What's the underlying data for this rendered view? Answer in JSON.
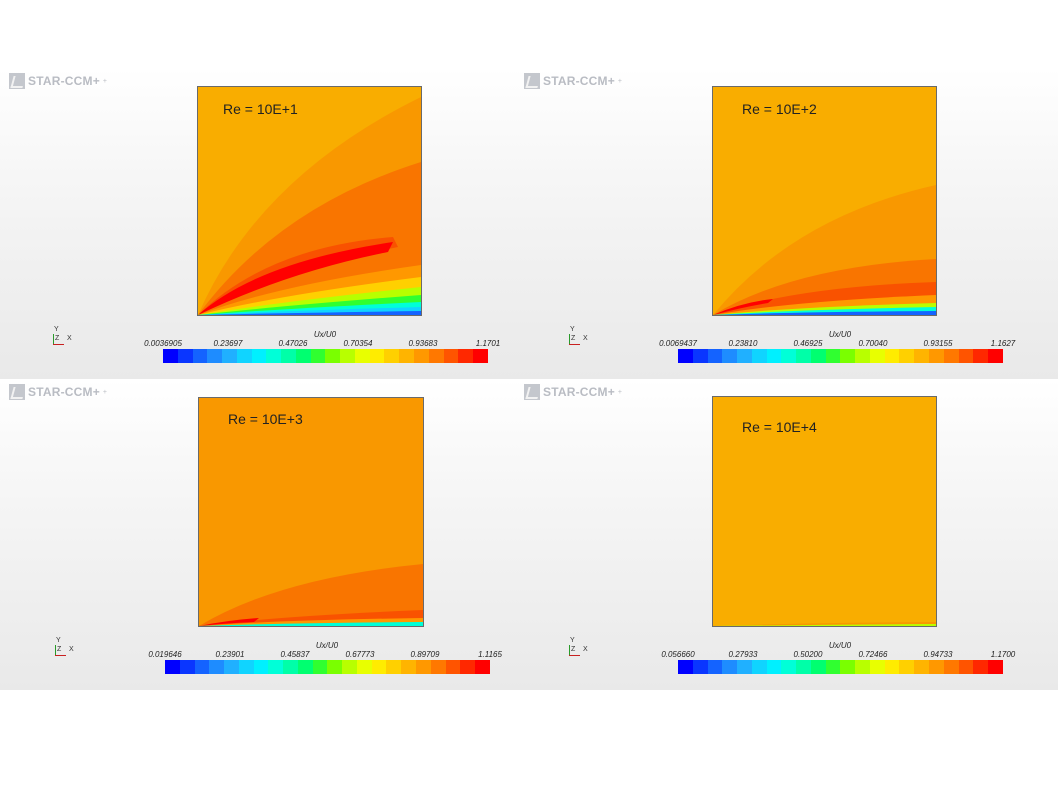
{
  "panels": [
    {
      "logo": "STAR-CCM+",
      "title": "Re = 10E+1",
      "colorbar": {
        "label": "Ux/U0",
        "ticks": [
          "0.0036905",
          "0.23697",
          "0.47026",
          "0.70354",
          "0.93683",
          "1.1701"
        ]
      },
      "triad": {
        "y": "Y",
        "z": "Z",
        "x": "X"
      }
    },
    {
      "logo": "STAR-CCM+",
      "title": "Re = 10E+2",
      "colorbar": {
        "label": "Ux/U0",
        "ticks": [
          "0.0069437",
          "0.23810",
          "0.46925",
          "0.70040",
          "0.93155",
          "1.1627"
        ]
      },
      "triad": {
        "y": "Y",
        "z": "Z",
        "x": "X"
      }
    },
    {
      "logo": "STAR-CCM+",
      "title": "Re = 10E+3",
      "colorbar": {
        "label": "Ux/U0",
        "ticks": [
          "0.019646",
          "0.23901",
          "0.45837",
          "0.67773",
          "0.89709",
          "1.1165"
        ]
      },
      "triad": {
        "y": "Y",
        "z": "Z",
        "x": "X"
      }
    },
    {
      "logo": "STAR-CCM+",
      "title": "Re = 10E+4",
      "colorbar": {
        "label": "Ux/U0",
        "ticks": [
          "0.056660",
          "0.27933",
          "0.50200",
          "0.72466",
          "0.94733",
          "1.1700"
        ]
      },
      "triad": {
        "y": "Y",
        "z": "Z",
        "x": "X"
      }
    }
  ],
  "colormap": [
    "#0000ff",
    "#0a36ff",
    "#1463ff",
    "#1e8cff",
    "#20b0ff",
    "#10d4ff",
    "#00f0ff",
    "#00ffd8",
    "#00ffa8",
    "#00ff70",
    "#30ff30",
    "#7aff00",
    "#b8ff00",
    "#e8ff00",
    "#ffec00",
    "#ffd000",
    "#ffb400",
    "#ff9800",
    "#ff7800",
    "#ff5400",
    "#ff2800",
    "#ff0000"
  ],
  "colors": {
    "field_orange": "#f9ad00",
    "field_mid": "#f99800",
    "field_dark": "#f97500",
    "field_red": "#f95200",
    "jet_red": "#ff0000"
  }
}
